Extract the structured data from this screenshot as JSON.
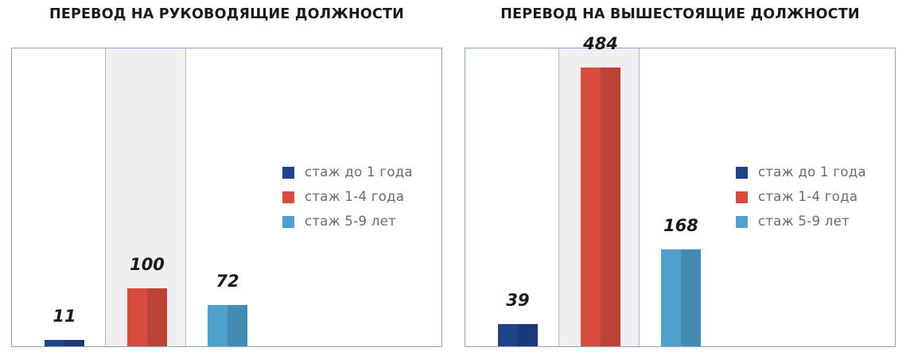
{
  "colors": {
    "series_0": "#1f4387",
    "series_1": "#d64c3f",
    "series_2": "#4fa0cd"
  },
  "chart_data": [
    {
      "type": "bar",
      "title": "ПЕРЕВОД НА РУКОВОДЯЩИЕ ДОЛЖНОСТИ",
      "categories": [
        "стаж до 1 года",
        "стаж 1-4 года",
        "стаж 5-9 лет"
      ],
      "values": [
        11,
        100,
        72
      ],
      "ylim": [
        0,
        520
      ],
      "legend": {
        "position": "right-middle",
        "items": [
          "стаж до 1 года",
          "стаж 1-4 года",
          "стаж 5-9 лет"
        ]
      },
      "grid": false
    },
    {
      "type": "bar",
      "title": "ПЕРЕВОД НА ВЫШЕСТОЯЩИЕ ДОЛЖНОСТИ",
      "categories": [
        "стаж до 1 года",
        "стаж 1-4 года",
        "стаж 5-9 лет"
      ],
      "values": [
        39,
        484,
        168
      ],
      "ylim": [
        0,
        520
      ],
      "legend": {
        "position": "right-middle",
        "items": [
          "стаж до 1 года",
          "стаж 1-4 года",
          "стаж 5-9 лет"
        ]
      },
      "grid": false
    }
  ]
}
